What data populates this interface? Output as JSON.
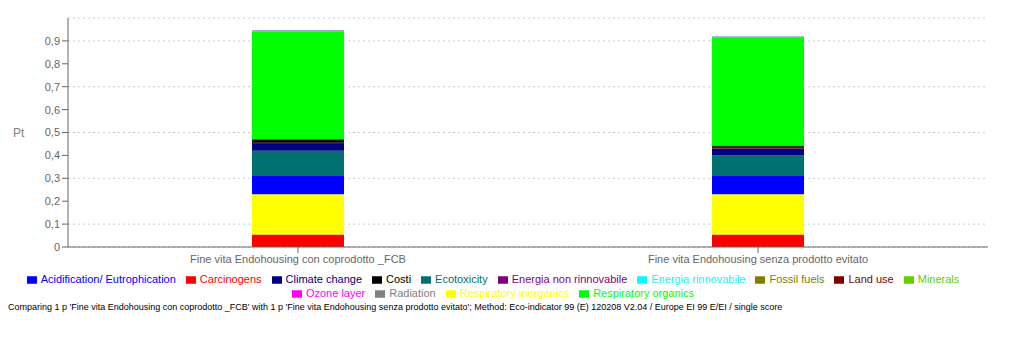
{
  "chart_data": {
    "type": "bar",
    "stacked": true,
    "categories": [
      "Fine vita Endohousing con coprodotto _FCB",
      "Fine vita Endohousing senza prodotto evitato"
    ],
    "series": [
      {
        "name": "Carcinogens",
        "color": "#ff0000",
        "values": [
          0.055,
          0.055
        ]
      },
      {
        "name": "Respiratory inorganics",
        "color": "#ffff00",
        "values": [
          0.175,
          0.175
        ]
      },
      {
        "name": "Acidification/ Eutrophication",
        "color": "#0000ff",
        "values": [
          0.08,
          0.08
        ]
      },
      {
        "name": "Ecotoxicity",
        "color": "#007070",
        "values": [
          0.11,
          0.09
        ]
      },
      {
        "name": "Climate change",
        "color": "#000080",
        "values": [
          0.03,
          0.03
        ]
      },
      {
        "name": "Land use",
        "color": "#800000",
        "values": [
          0.005,
          0.008
        ]
      },
      {
        "name": "Costi",
        "color": "#000000",
        "values": [
          0.015,
          0.005
        ]
      },
      {
        "name": "Respiratory organics",
        "color": "#00ff00",
        "values": [
          0.47,
          0.47
        ]
      },
      {
        "name": "Radiation",
        "color": "#808080",
        "values": [
          0.001,
          0.001
        ]
      },
      {
        "name": "Ozone layer",
        "color": "#ff00ff",
        "values": [
          0.001,
          0.001
        ]
      },
      {
        "name": "Minerals",
        "color": "#66cc00",
        "values": [
          0.001,
          0.001
        ]
      },
      {
        "name": "Fossil fuels",
        "color": "#808000",
        "values": [
          0.001,
          0.001
        ]
      },
      {
        "name": "Energia rinnovabile",
        "color": "#00ffff",
        "values": [
          0.001,
          0.001
        ]
      },
      {
        "name": "Energia non rinnovabile",
        "color": "#800080",
        "values": [
          0.001,
          0.001
        ]
      }
    ],
    "ylabel": "Pt",
    "ylim": [
      0,
      1.0
    ],
    "yticks": [
      0,
      {
        "value": 0.1,
        "label": "0,1"
      },
      {
        "value": 0.2,
        "label": "0,2"
      },
      {
        "value": 0.3,
        "label": "0,3"
      },
      {
        "value": 0.4,
        "label": "0,4"
      },
      {
        "value": 0.5,
        "label": "0,5"
      },
      {
        "value": 0.6,
        "label": "0,6"
      },
      {
        "value": 0.7,
        "label": "0,7"
      },
      {
        "value": 0.8,
        "label": "0,8"
      },
      {
        "value": 0.9,
        "label": "0,9"
      }
    ],
    "grid": true,
    "legend": "bottom",
    "annotations": [
      "Comparing 1 p 'Fine vita Endohousing con coprodotto _FCB' with 1 p 'Fine vita Endohousing senza prodotto evitato';  Method: Eco-indicator 99 (E) 120208 V2.04 /  Europe EI 99 E/EI / single score"
    ]
  }
}
